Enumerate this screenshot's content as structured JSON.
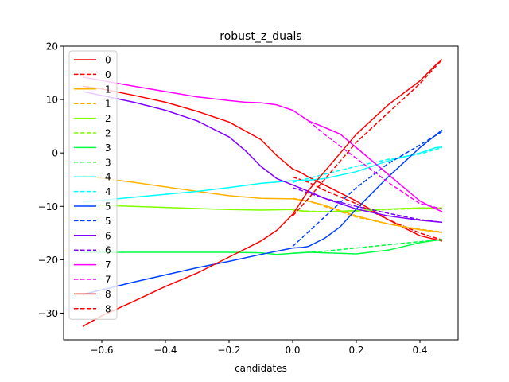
{
  "chart_data": {
    "type": "line",
    "title": "robust_z_duals",
    "xlabel": "candidates",
    "ylabel": "",
    "xlim": [
      -0.72,
      0.52
    ],
    "ylim": [
      -35,
      20
    ],
    "xticks": [
      {
        "v": -0.6,
        "label": "−0.6"
      },
      {
        "v": -0.4,
        "label": "−0.4"
      },
      {
        "v": -0.2,
        "label": "−0.2"
      },
      {
        "v": 0.0,
        "label": "0.0"
      },
      {
        "v": 0.2,
        "label": "0.2"
      },
      {
        "v": 0.4,
        "label": "0.4"
      }
    ],
    "yticks": [
      {
        "v": 20,
        "label": "20"
      },
      {
        "v": 10,
        "label": "10"
      },
      {
        "v": 0,
        "label": "0"
      },
      {
        "v": -10,
        "label": "−10"
      },
      {
        "v": -20,
        "label": "−20"
      },
      {
        "v": -30,
        "label": "−30"
      }
    ],
    "grid": false,
    "legend_position": "top-left",
    "series": [
      {
        "name": "0",
        "color": "#ff0000",
        "dash": false,
        "x": [
          -0.66,
          -0.6,
          -0.5,
          -0.4,
          -0.3,
          -0.2,
          -0.1,
          -0.05,
          0.0,
          0.02,
          0.05,
          0.1,
          0.2,
          0.3,
          0.4,
          0.47
        ],
        "y": [
          12.5,
          12.0,
          10.8,
          9.5,
          7.8,
          5.8,
          2.5,
          -0.5,
          -3.0,
          -3.5,
          -4.5,
          -6.0,
          -9.0,
          -12.5,
          -15.5,
          -16.5
        ]
      },
      {
        "name": "0",
        "color": "#ff0000",
        "dash": true,
        "x": [
          0.0,
          0.05,
          0.1,
          0.2,
          0.3,
          0.4,
          0.47
        ],
        "y": [
          -4.5,
          -5.5,
          -7.0,
          -9.5,
          -12.5,
          -15.0,
          -16.3
        ]
      },
      {
        "name": "1",
        "color": "#ffb300",
        "dash": false,
        "x": [
          -0.66,
          -0.5,
          -0.3,
          -0.2,
          -0.1,
          0.0,
          0.05,
          0.1,
          0.2,
          0.3,
          0.4,
          0.47
        ],
        "y": [
          -4.3,
          -5.5,
          -7.2,
          -8.0,
          -8.5,
          -8.6,
          -9.0,
          -9.8,
          -11.8,
          -13.3,
          -14.4,
          -14.9
        ]
      },
      {
        "name": "1",
        "color": "#ffb300",
        "dash": true,
        "x": [
          0.0,
          0.05,
          0.1,
          0.2,
          0.3,
          0.4,
          0.47
        ],
        "y": [
          -8.5,
          -9.0,
          -10.0,
          -12.0,
          -13.3,
          -14.3,
          -14.8
        ]
      },
      {
        "name": "2",
        "color": "#80ff00",
        "dash": false,
        "x": [
          -0.66,
          -0.5,
          -0.3,
          -0.2,
          -0.1,
          0.0,
          0.05,
          0.1,
          0.2,
          0.3,
          0.4,
          0.47
        ],
        "y": [
          -9.7,
          -10.0,
          -10.4,
          -10.6,
          -10.7,
          -10.6,
          -11.0,
          -11.0,
          -10.8,
          -10.5,
          -10.3,
          -10.3
        ]
      },
      {
        "name": "2",
        "color": "#80ff00",
        "dash": true,
        "x": [
          0.0,
          0.1,
          0.2,
          0.3,
          0.4,
          0.47
        ],
        "y": [
          -10.8,
          -11.0,
          -10.9,
          -10.6,
          -10.4,
          -10.3
        ]
      },
      {
        "name": "3",
        "color": "#00ff40",
        "dash": false,
        "x": [
          -0.66,
          -0.5,
          -0.3,
          -0.2,
          -0.1,
          -0.05,
          0.0,
          0.05,
          0.1,
          0.2,
          0.3,
          0.4,
          0.47
        ],
        "y": [
          -18.6,
          -18.6,
          -18.6,
          -18.6,
          -18.7,
          -19.0,
          -18.8,
          -18.6,
          -18.7,
          -18.9,
          -18.2,
          -16.8,
          -16.2
        ]
      },
      {
        "name": "3",
        "color": "#00ff40",
        "dash": true,
        "x": [
          0.0,
          0.1,
          0.2,
          0.3,
          0.4,
          0.47
        ],
        "y": [
          -18.8,
          -18.4,
          -17.8,
          -17.2,
          -16.6,
          -16.3
        ]
      },
      {
        "name": "4",
        "color": "#00ffff",
        "dash": false,
        "x": [
          -0.66,
          -0.5,
          -0.3,
          -0.2,
          -0.1,
          0.0,
          0.05,
          0.1,
          0.2,
          0.3,
          0.4,
          0.45,
          0.47
        ],
        "y": [
          -9.2,
          -8.3,
          -7.2,
          -6.5,
          -5.7,
          -5.2,
          -5.1,
          -4.8,
          -3.5,
          -1.5,
          0.0,
          1.0,
          1.1
        ]
      },
      {
        "name": "4",
        "color": "#00ffff",
        "dash": true,
        "x": [
          0.0,
          0.1,
          0.2,
          0.3,
          0.4,
          0.47
        ],
        "y": [
          -5.5,
          -4.0,
          -2.5,
          -1.2,
          -0.2,
          1.0
        ]
      },
      {
        "name": "5",
        "color": "#0040ff",
        "dash": false,
        "x": [
          -0.66,
          -0.5,
          -0.3,
          -0.2,
          -0.1,
          0.0,
          0.03,
          0.05,
          0.1,
          0.15,
          0.2,
          0.3,
          0.4,
          0.47
        ],
        "y": [
          -26.5,
          -24.2,
          -21.5,
          -20.3,
          -19.0,
          -17.8,
          -17.7,
          -17.5,
          -16.0,
          -13.8,
          -10.5,
          -4.5,
          1.0,
          4.3
        ]
      },
      {
        "name": "5",
        "color": "#0040ff",
        "dash": true,
        "x": [
          0.0,
          0.1,
          0.2,
          0.3,
          0.4,
          0.47
        ],
        "y": [
          -17.5,
          -12.0,
          -6.5,
          -2.0,
          1.5,
          4.0
        ]
      },
      {
        "name": "6",
        "color": "#8000ff",
        "dash": false,
        "x": [
          -0.66,
          -0.5,
          -0.4,
          -0.3,
          -0.2,
          -0.15,
          -0.1,
          -0.05,
          0.0,
          0.05,
          0.1,
          0.2,
          0.3,
          0.4,
          0.47
        ],
        "y": [
          11.5,
          9.5,
          8.0,
          6.0,
          3.0,
          0.5,
          -2.5,
          -4.8,
          -6.0,
          -7.2,
          -8.5,
          -10.5,
          -11.8,
          -12.6,
          -13.0
        ]
      },
      {
        "name": "6",
        "color": "#8000ff",
        "dash": true,
        "x": [
          0.0,
          0.1,
          0.2,
          0.3,
          0.4,
          0.47
        ],
        "y": [
          -6.5,
          -8.5,
          -10.0,
          -11.3,
          -12.5,
          -13.0
        ]
      },
      {
        "name": "7",
        "color": "#ff00ff",
        "dash": false,
        "x": [
          -0.66,
          -0.5,
          -0.4,
          -0.3,
          -0.2,
          -0.15,
          -0.1,
          -0.05,
          0.0,
          0.05,
          0.1,
          0.15,
          0.2,
          0.3,
          0.4,
          0.45,
          0.47
        ],
        "y": [
          14.2,
          12.5,
          11.5,
          10.5,
          9.8,
          9.5,
          9.4,
          9.0,
          8.0,
          6.0,
          4.8,
          3.5,
          1.0,
          -4.0,
          -9.0,
          -10.5,
          -11.0
        ]
      },
      {
        "name": "7",
        "color": "#ff00ff",
        "dash": true,
        "x": [
          0.05,
          0.1,
          0.2,
          0.3,
          0.4,
          0.47
        ],
        "y": [
          6.0,
          3.5,
          -1.0,
          -5.5,
          -9.5,
          -10.5
        ]
      },
      {
        "name": "8",
        "color": "#ff0000",
        "dash": false,
        "x": [
          -0.66,
          -0.6,
          -0.5,
          -0.4,
          -0.3,
          -0.2,
          -0.1,
          -0.05,
          0.0,
          0.05,
          0.1,
          0.15,
          0.2,
          0.3,
          0.4,
          0.45,
          0.47
        ],
        "y": [
          -32.5,
          -30.5,
          -27.8,
          -25.0,
          -22.5,
          -19.5,
          -16.5,
          -14.5,
          -11.5,
          -7.0,
          -3.5,
          0.0,
          3.5,
          9.0,
          13.5,
          16.5,
          17.5
        ]
      },
      {
        "name": "8",
        "color": "#ff0000",
        "dash": true,
        "x": [
          0.0,
          0.05,
          0.1,
          0.15,
          0.2,
          0.3,
          0.4,
          0.47
        ],
        "y": [
          -11.8,
          -8.5,
          -5.0,
          -1.5,
          2.0,
          7.5,
          13.0,
          17.5
        ]
      }
    ]
  }
}
